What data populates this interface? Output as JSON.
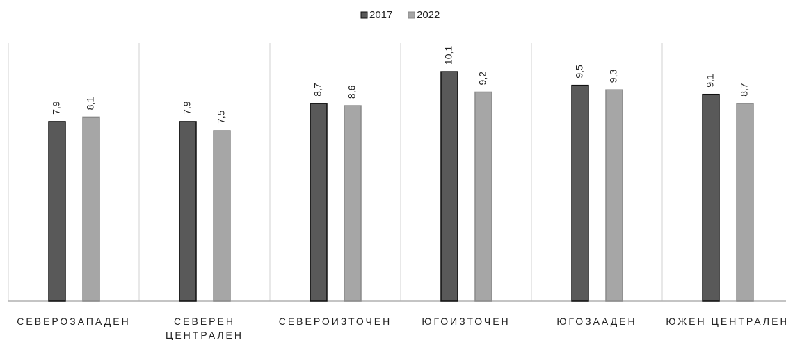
{
  "chart_data": {
    "type": "bar",
    "categories": [
      "СЕВЕРОЗАПАДЕН",
      "СЕВЕРЕН ЦЕНТРАЛЕН",
      "СЕВЕРОИЗТОЧЕН",
      "ЮГОИЗТОЧЕН",
      "ЮГОЗААДЕН",
      "ЮЖЕН ЦЕНТРАЛЕН"
    ],
    "series": [
      {
        "name": "2017",
        "color": "#595959",
        "values": [
          7.9,
          7.9,
          8.7,
          10.1,
          9.5,
          9.1
        ],
        "value_labels": [
          "7,9",
          "7,9",
          "8,7",
          "10,1",
          "9,5",
          "9,1"
        ]
      },
      {
        "name": "2022",
        "color": "#a6a6a6",
        "values": [
          8.1,
          7.5,
          8.6,
          9.2,
          9.3,
          8.7
        ],
        "value_labels": [
          "8,1",
          "7,5",
          "8,6",
          "9,2",
          "9,3",
          "8,7"
        ]
      }
    ],
    "ylim": [
      0,
      12
    ],
    "legend": "top"
  }
}
